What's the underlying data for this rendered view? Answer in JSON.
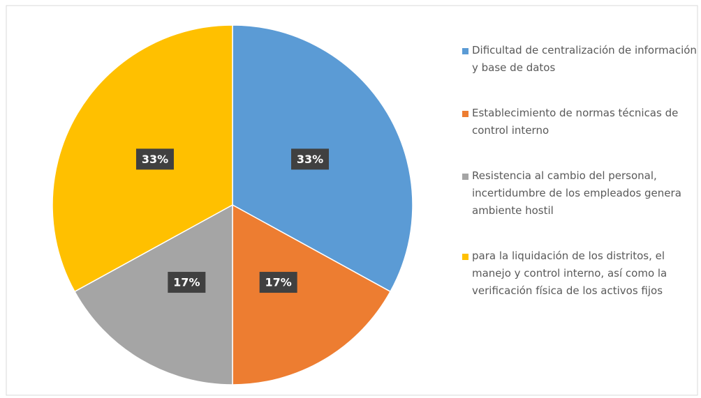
{
  "chart_data": {
    "type": "pie",
    "categories": [
      "Dificultad de centralización de información y base de datos",
      "Establecimiento de normas técnicas de control interno",
      "Resistencia al cambio del personal, incertidumbre de los empleados genera ambiente hostil",
      "para la liquidación de los distritos, el manejo y control interno, así como la verificación física de los activos fijos"
    ],
    "values": [
      33,
      17,
      17,
      33
    ],
    "value_labels": [
      "33%",
      "17%",
      "17%",
      "33%"
    ],
    "colors": [
      "#5b9bd5",
      "#ed7d31",
      "#a5a5a5",
      "#ffc000"
    ],
    "legend": "right"
  }
}
